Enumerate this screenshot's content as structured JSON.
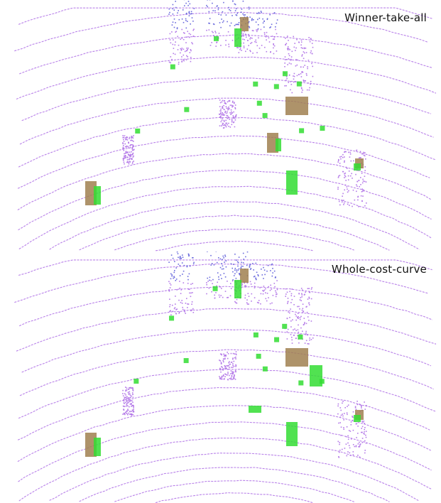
{
  "panels": [
    {
      "title": "Winner-take-all",
      "clusters": [
        {
          "name": "near-left-object",
          "kind": "mixed"
        },
        {
          "name": "center-right-object",
          "kind": "mixed"
        },
        {
          "name": "far-right-object",
          "kind": "brown"
        },
        {
          "name": "mid-right-object",
          "kind": "mixed"
        },
        {
          "name": "right-edge-object",
          "kind": "mixed"
        },
        {
          "name": "far-center-object",
          "kind": "mixed"
        }
      ]
    },
    {
      "title": "Whole-cost-curve",
      "clusters": [
        {
          "name": "near-left-object",
          "kind": "mixed"
        },
        {
          "name": "center-right-object",
          "kind": "green"
        },
        {
          "name": "far-right-object",
          "kind": "mixed"
        },
        {
          "name": "mid-right-object",
          "kind": "mixed"
        },
        {
          "name": "right-edge-object",
          "kind": "mixed"
        },
        {
          "name": "far-center-object",
          "kind": "mixed"
        }
      ]
    }
  ],
  "colors": {
    "lidar_points": "#b57be8",
    "lidar_far": "#6b6bdd",
    "prediction_green": "#33dd33",
    "prediction_brown": "#a08050",
    "background": "#ffffff"
  }
}
